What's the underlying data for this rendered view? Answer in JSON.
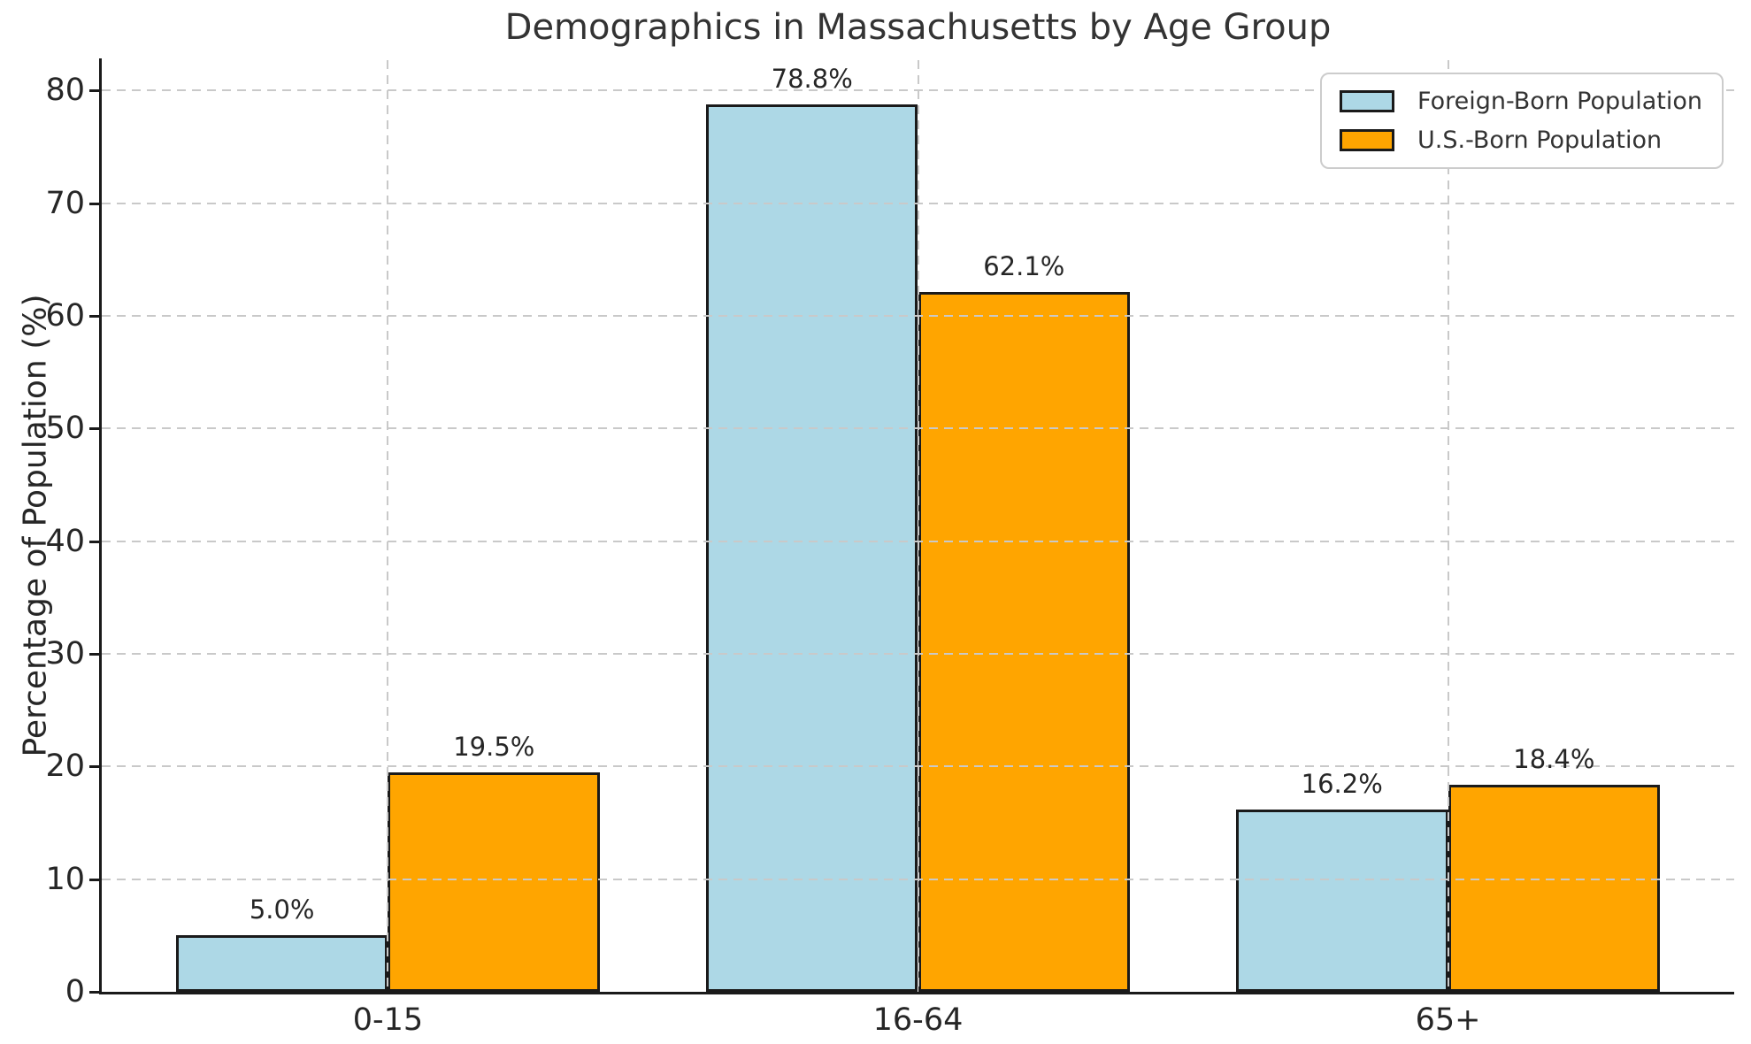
{
  "chart_data": {
    "type": "bar",
    "title": "Demographics in Massachusetts by Age Group",
    "xlabel": "",
    "ylabel": "Percentage of Population (%)",
    "categories": [
      "0-15",
      "16-64",
      "65+"
    ],
    "series": [
      {
        "name": "Foreign-Born Population",
        "color": "#ADD8E6",
        "values": [
          5.0,
          78.8,
          16.2
        ],
        "value_labels": [
          "5.0%",
          "78.8%",
          "16.2%"
        ]
      },
      {
        "name": "U.S.-Born Population",
        "color": "#FFA500",
        "values": [
          19.5,
          62.1,
          18.4
        ],
        "value_labels": [
          "19.5%",
          "62.1%",
          "18.4%"
        ]
      }
    ],
    "yticks": [
      0,
      10,
      20,
      30,
      40,
      50,
      60,
      70,
      80
    ],
    "ylim": [
      0,
      82.7
    ],
    "xlim": [
      -0.54,
      2.54
    ],
    "bar_width": 0.4,
    "grid": true,
    "grid_style": "dashed",
    "grid_above_bars": true,
    "grid_color": "#c9c9c9",
    "axis_color": "#1a1a1a",
    "bar_edge_color": "#1a1a1a",
    "legend_position": "upper right"
  }
}
